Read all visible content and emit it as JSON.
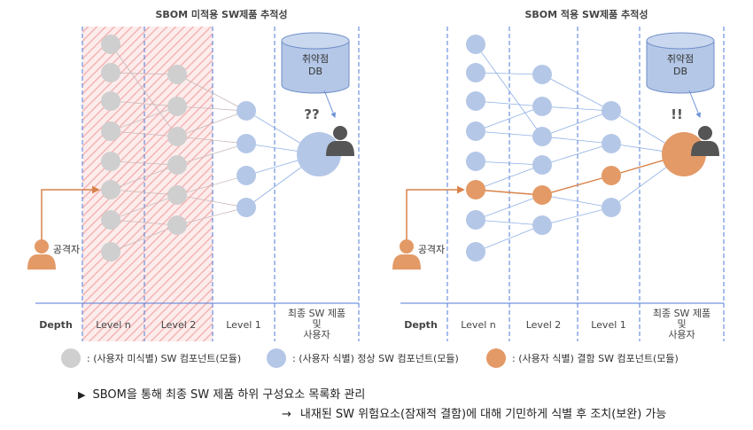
{
  "panels": [
    {
      "title": "SBOM 미적용 SW제품 추적성",
      "db_label_line1": "취약점",
      "db_label_line2": "DB",
      "status_mark": "??",
      "attacker_label": "공격자",
      "depth_label": "Depth",
      "columns": [
        "Level n",
        "Level 2",
        "Level 1",
        "최종 SW 제품\n및\n사용자"
      ]
    },
    {
      "title": "SBOM 적용 SW제품 추적성",
      "db_label_line1": "취약점",
      "db_label_line2": "DB",
      "status_mark": "!!",
      "attacker_label": "공격자",
      "depth_label": "Depth",
      "columns": [
        "Level n",
        "Level 2",
        "Level 1",
        "최종 SW 제품\n및\n사용자"
      ]
    }
  ],
  "legend": [
    {
      "label": ": (사용자 미식별) SW 컴포넌트(모듈)",
      "color": "#cfcfcf"
    },
    {
      "label": ": (사용자 식별) 정상 SW 컴포넌트(모듈)",
      "color": "#b4c7e7"
    },
    {
      "label": ": (사용자 식별) 결함 SW 컴포넌트(모듈)",
      "color": "#e39a67"
    }
  ],
  "captions": {
    "bullet": "▶",
    "line1": "SBOM을 통해 최종 SW 제품 하위 구성요소 목록화 관리",
    "arrow": "→",
    "line2": "내재된 SW 위험요소(잠재적 결함)에 대해 기민하게 식별 후 조치(보완) 가능"
  },
  "colors": {
    "unidentified": "#cfcfcf",
    "normal": "#b4c7e7",
    "defect": "#e39a67",
    "attacker": "#e39a67",
    "user": "#555555",
    "column_line": "#4f7bd9",
    "hatch": "#f2aaaa",
    "link_gray": "#c9b8b8",
    "link_blue": "#8fb0e6",
    "link_orange": "#d9824a"
  },
  "icons": [
    "database-icon",
    "user-icon",
    "attacker-icon",
    "legend-dot-icon"
  ]
}
